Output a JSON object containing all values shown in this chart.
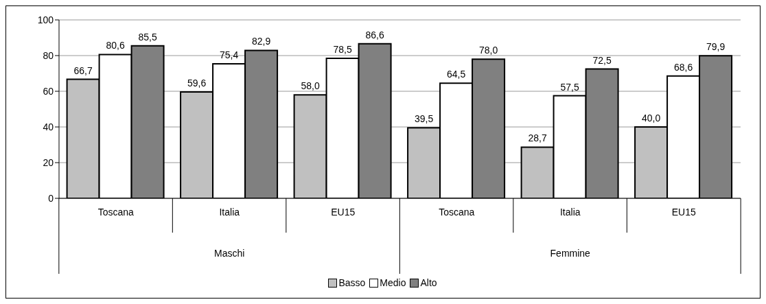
{
  "chart_data": {
    "type": "bar",
    "categories": [
      "Toscana",
      "Italia",
      "EU15",
      "Toscana",
      "Italia",
      "EU15"
    ],
    "series": [
      {
        "name": "Basso",
        "color": "#c0c0c0",
        "values": [
          66.7,
          59.6,
          58.0,
          39.5,
          28.7,
          40.0
        ],
        "value_labels": [
          "66,7",
          "59,6",
          "58,0",
          "39,5",
          "28,7",
          "40,0"
        ]
      },
      {
        "name": "Medio",
        "color": "#ffffff",
        "values": [
          80.6,
          75.4,
          78.5,
          64.5,
          57.5,
          68.6
        ],
        "value_labels": [
          "80,6",
          "75,4",
          "78,5",
          "64,5",
          "57,5",
          "68,6"
        ]
      },
      {
        "name": "Alto",
        "color": "#808080",
        "values": [
          85.5,
          82.9,
          86.6,
          78.0,
          72.5,
          79.9
        ],
        "value_labels": [
          "85,5",
          "82,9",
          "86,6",
          "78,0",
          "72,5",
          "79,9"
        ]
      }
    ],
    "annotations": [
      "Maschi",
      "Femmine"
    ],
    "ylim": [
      0,
      100
    ],
    "yticks": [
      0,
      20,
      40,
      60,
      80,
      100
    ],
    "grid": "y",
    "legend": "bottom"
  }
}
